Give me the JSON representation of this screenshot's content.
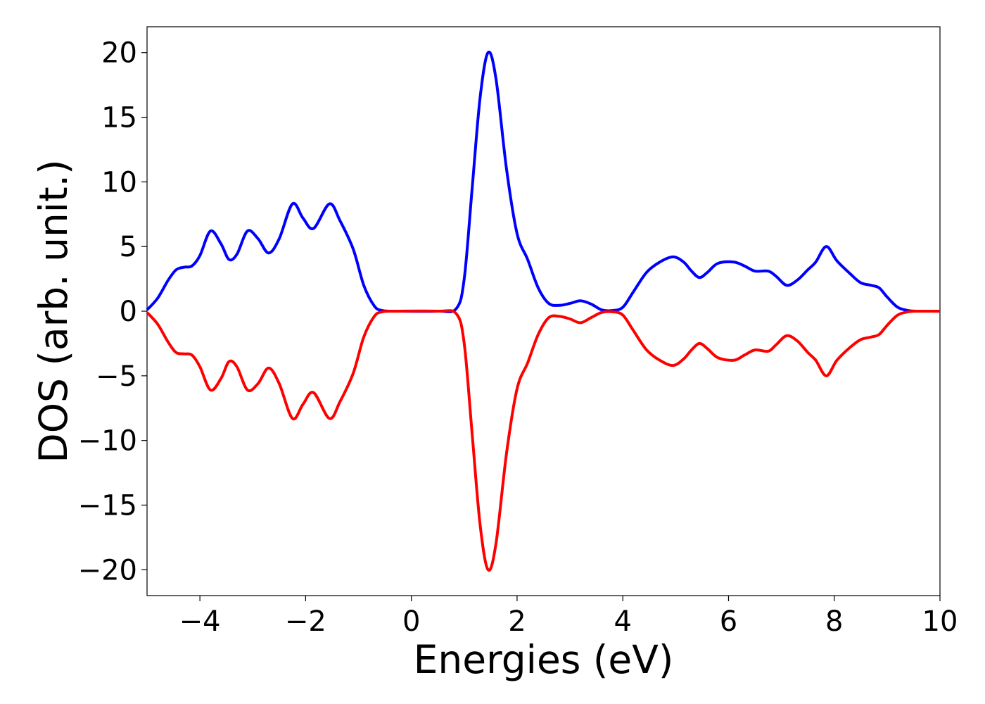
{
  "chart_data": {
    "type": "line",
    "title": "",
    "xlabel": "Energies (eV)",
    "ylabel": "DOS (arb. unit.)",
    "xlim": [
      -5,
      10
    ],
    "ylim": [
      -22,
      22
    ],
    "x_ticks": [
      -4,
      -2,
      0,
      2,
      4,
      6,
      8,
      10
    ],
    "x_tick_labels": [
      "−4",
      "−2",
      "0",
      "2",
      "4",
      "6",
      "8",
      "10"
    ],
    "y_ticks": [
      20,
      15,
      10,
      5,
      0,
      -5,
      -10,
      -15,
      -20
    ],
    "y_tick_labels": [
      "20",
      "15",
      "10",
      "5",
      "0",
      "−5",
      "−10",
      "−15",
      "−20"
    ],
    "grid": false,
    "legend": "none",
    "series": [
      {
        "color": "#0000ff",
        "points": [
          [
            -5.0,
            0.1
          ],
          [
            -4.8,
            1.0
          ],
          [
            -4.6,
            2.4
          ],
          [
            -4.45,
            3.2
          ],
          [
            -4.3,
            3.4
          ],
          [
            -4.15,
            3.5
          ],
          [
            -4.0,
            4.3
          ],
          [
            -3.8,
            6.2
          ],
          [
            -3.6,
            5.2
          ],
          [
            -3.45,
            4.0
          ],
          [
            -3.3,
            4.4
          ],
          [
            -3.1,
            6.2
          ],
          [
            -2.9,
            5.6
          ],
          [
            -2.7,
            4.5
          ],
          [
            -2.5,
            5.6
          ],
          [
            -2.25,
            8.3
          ],
          [
            -2.05,
            7.2
          ],
          [
            -1.85,
            6.4
          ],
          [
            -1.55,
            8.3
          ],
          [
            -1.35,
            7.0
          ],
          [
            -1.1,
            4.8
          ],
          [
            -0.9,
            2.0
          ],
          [
            -0.7,
            0.4
          ],
          [
            -0.55,
            0.05
          ],
          [
            -0.3,
            0.0
          ],
          [
            0.5,
            0.0
          ],
          [
            0.85,
            0.2
          ],
          [
            1.0,
            2.5
          ],
          [
            1.15,
            9.5
          ],
          [
            1.3,
            16.5
          ],
          [
            1.45,
            20.0
          ],
          [
            1.6,
            18.0
          ],
          [
            1.8,
            11.0
          ],
          [
            2.0,
            6.0
          ],
          [
            2.2,
            4.0
          ],
          [
            2.4,
            1.8
          ],
          [
            2.6,
            0.6
          ],
          [
            2.8,
            0.45
          ],
          [
            3.0,
            0.6
          ],
          [
            3.2,
            0.8
          ],
          [
            3.4,
            0.55
          ],
          [
            3.6,
            0.1
          ],
          [
            3.8,
            0.05
          ],
          [
            4.0,
            0.3
          ],
          [
            4.2,
            1.5
          ],
          [
            4.45,
            3.0
          ],
          [
            4.7,
            3.8
          ],
          [
            4.95,
            4.2
          ],
          [
            5.15,
            3.8
          ],
          [
            5.3,
            3.1
          ],
          [
            5.45,
            2.6
          ],
          [
            5.6,
            3.0
          ],
          [
            5.8,
            3.7
          ],
          [
            6.1,
            3.8
          ],
          [
            6.3,
            3.5
          ],
          [
            6.5,
            3.1
          ],
          [
            6.75,
            3.1
          ],
          [
            6.9,
            2.7
          ],
          [
            7.1,
            2.0
          ],
          [
            7.3,
            2.4
          ],
          [
            7.5,
            3.2
          ],
          [
            7.65,
            3.8
          ],
          [
            7.85,
            5.0
          ],
          [
            8.05,
            3.9
          ],
          [
            8.3,
            2.9
          ],
          [
            8.5,
            2.2
          ],
          [
            8.7,
            2.0
          ],
          [
            8.85,
            1.8
          ],
          [
            9.0,
            1.1
          ],
          [
            9.2,
            0.3
          ],
          [
            9.4,
            0.05
          ],
          [
            9.6,
            0.0
          ],
          [
            10.0,
            0.0
          ]
        ]
      },
      {
        "color": "#ff0000",
        "points": [
          [
            -5.0,
            -0.1
          ],
          [
            -4.8,
            -1.0
          ],
          [
            -4.6,
            -2.4
          ],
          [
            -4.45,
            -3.2
          ],
          [
            -4.3,
            -3.3
          ],
          [
            -4.15,
            -3.4
          ],
          [
            -4.0,
            -4.3
          ],
          [
            -3.8,
            -6.1
          ],
          [
            -3.6,
            -5.2
          ],
          [
            -3.45,
            -3.9
          ],
          [
            -3.3,
            -4.3
          ],
          [
            -3.1,
            -6.1
          ],
          [
            -2.9,
            -5.6
          ],
          [
            -2.7,
            -4.4
          ],
          [
            -2.5,
            -5.6
          ],
          [
            -2.25,
            -8.3
          ],
          [
            -2.05,
            -7.2
          ],
          [
            -1.85,
            -6.3
          ],
          [
            -1.55,
            -8.3
          ],
          [
            -1.35,
            -7.0
          ],
          [
            -1.1,
            -4.8
          ],
          [
            -0.9,
            -2.0
          ],
          [
            -0.7,
            -0.4
          ],
          [
            -0.55,
            -0.05
          ],
          [
            -0.3,
            0.0
          ],
          [
            0.5,
            0.0
          ],
          [
            0.85,
            -0.2
          ],
          [
            1.0,
            -2.5
          ],
          [
            1.15,
            -9.5
          ],
          [
            1.3,
            -16.5
          ],
          [
            1.45,
            -20.0
          ],
          [
            1.6,
            -18.0
          ],
          [
            1.8,
            -11.0
          ],
          [
            2.0,
            -6.0
          ],
          [
            2.2,
            -4.0
          ],
          [
            2.4,
            -1.8
          ],
          [
            2.6,
            -0.5
          ],
          [
            2.8,
            -0.4
          ],
          [
            3.0,
            -0.6
          ],
          [
            3.2,
            -0.9
          ],
          [
            3.4,
            -0.5
          ],
          [
            3.6,
            -0.1
          ],
          [
            3.8,
            -0.05
          ],
          [
            4.0,
            -0.3
          ],
          [
            4.2,
            -1.5
          ],
          [
            4.45,
            -3.0
          ],
          [
            4.7,
            -3.8
          ],
          [
            4.95,
            -4.2
          ],
          [
            5.15,
            -3.7
          ],
          [
            5.3,
            -3.0
          ],
          [
            5.45,
            -2.5
          ],
          [
            5.6,
            -2.9
          ],
          [
            5.8,
            -3.6
          ],
          [
            6.1,
            -3.8
          ],
          [
            6.3,
            -3.4
          ],
          [
            6.5,
            -3.0
          ],
          [
            6.75,
            -3.1
          ],
          [
            6.9,
            -2.6
          ],
          [
            7.1,
            -1.9
          ],
          [
            7.3,
            -2.3
          ],
          [
            7.5,
            -3.2
          ],
          [
            7.65,
            -3.8
          ],
          [
            7.85,
            -5.0
          ],
          [
            8.05,
            -3.8
          ],
          [
            8.3,
            -2.8
          ],
          [
            8.5,
            -2.2
          ],
          [
            8.7,
            -2.0
          ],
          [
            8.85,
            -1.8
          ],
          [
            9.0,
            -1.1
          ],
          [
            9.2,
            -0.3
          ],
          [
            9.4,
            -0.05
          ],
          [
            9.6,
            0.0
          ],
          [
            10.0,
            0.0
          ]
        ]
      }
    ]
  }
}
